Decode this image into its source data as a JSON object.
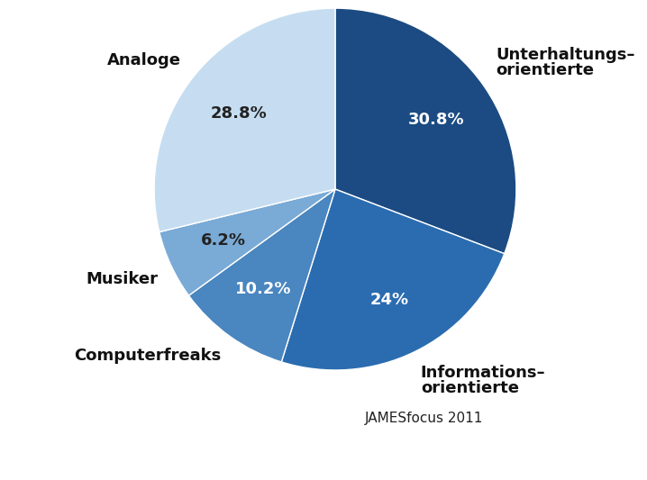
{
  "chart_data": {
    "type": "pie",
    "categories": [
      "Unterhaltungs–\norientierte",
      "Informations–\norientierte",
      "Computerfreaks",
      "Musiker",
      "Analoge"
    ],
    "values": [
      30.8,
      24,
      10.2,
      6.2,
      28.8
    ],
    "value_labels": [
      "30.8%",
      "24%",
      "10.2%",
      "6.2%",
      "28.8%"
    ],
    "colors": [
      "#1b4b82",
      "#2b6cb0",
      "#4a86bf",
      "#7aaad6",
      "#c6ddf1"
    ],
    "data_labels": true,
    "source": "JAMESfocus 2011"
  }
}
